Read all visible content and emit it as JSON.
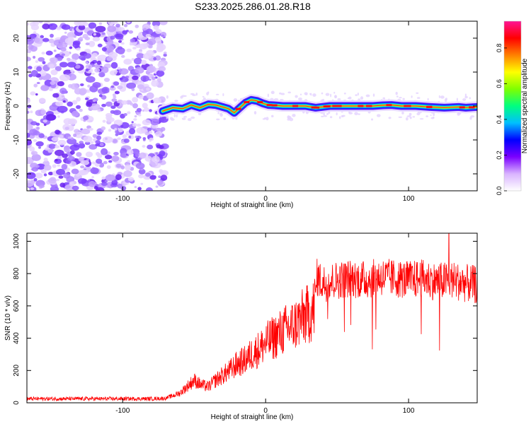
{
  "figure_title": "S233.2025.286.01.28.R18",
  "chart_data": [
    {
      "type": "heatmap",
      "title": "S233.2025.286.01.28.R18",
      "xlabel": "Height of straight line (km)",
      "ylabel": "Frequency (Hz)",
      "xlim": [
        -167,
        148
      ],
      "ylim": [
        -25,
        25
      ],
      "xticks": [
        -100,
        0,
        100
      ],
      "xtick_labels": [
        "-100",
        "0",
        "100"
      ],
      "yticks": [
        -20,
        -10,
        0,
        10,
        20
      ],
      "ytick_labels": [
        "-20",
        "-10",
        "0",
        "10",
        "20"
      ],
      "noise_region_x": [
        -167,
        -70
      ],
      "signal_line": {
        "x": [
          -72,
          -65,
          -58,
          -52,
          -46,
          -40,
          -35,
          -30,
          -26,
          -22,
          -18,
          -14,
          -10,
          -6,
          -2,
          2,
          6,
          12,
          20,
          28,
          35,
          45,
          55,
          65,
          75,
          82,
          88,
          95,
          105,
          115,
          125,
          135,
          140,
          148
        ],
        "freq": [
          -1.5,
          -0.5,
          -0.8,
          0.3,
          -0.5,
          0.5,
          0.3,
          -0.3,
          -0.8,
          -2,
          -0.5,
          1.0,
          1.8,
          1.5,
          0.8,
          0.3,
          0.2,
          0,
          0,
          0,
          -0.5,
          0,
          0,
          0,
          0,
          0.2,
          0.3,
          0,
          0,
          -0.3,
          -0.5,
          -0.3,
          -0.5,
          -0.3
        ]
      },
      "colorbar": {
        "label": "Normalized spectral amplitude",
        "range": [
          0,
          0.95
        ],
        "ticks": [
          0.0,
          0.2,
          0.4,
          0.6,
          0.8
        ],
        "tick_labels": [
          "0.0",
          "0.2",
          "0.4",
          "0.6",
          "0.8"
        ],
        "colors": [
          "#ffffff",
          "#d9b3ff",
          "#7b00ff",
          "#0000ff",
          "#00bfff",
          "#00ff80",
          "#7fff00",
          "#ffff00",
          "#ff8000",
          "#ff0000",
          "#ff1493"
        ]
      }
    },
    {
      "type": "line",
      "xlabel": "Height of straight line (km)",
      "ylabel": "SNR (10 * v/v)",
      "xlim": [
        -167,
        148
      ],
      "ylim": [
        0,
        1050
      ],
      "xticks": [
        -100,
        0,
        100
      ],
      "xtick_labels": [
        "-100",
        "0",
        "100"
      ],
      "yticks": [
        0,
        200,
        400,
        600,
        800,
        1000
      ],
      "ytick_labels": [
        "0",
        "200",
        "400",
        "600",
        "800",
        "1000"
      ],
      "line_color": "#ff0000",
      "series": [
        {
          "name": "SNR",
          "x": [
            -167,
            -140,
            -110,
            -80,
            -70,
            -60,
            -55,
            -50,
            -45,
            -40,
            -35,
            -30,
            -25,
            -20,
            -15,
            -10,
            -5,
            0,
            5,
            10,
            15,
            20,
            25,
            30,
            34,
            36,
            40,
            50,
            60,
            70,
            80,
            90,
            100,
            110,
            120,
            130,
            140,
            148
          ],
          "y": [
            25,
            25,
            25,
            25,
            28,
            60,
            100,
            140,
            110,
            100,
            140,
            170,
            200,
            240,
            260,
            300,
            330,
            370,
            400,
            430,
            460,
            480,
            520,
            550,
            580,
            780,
            740,
            760,
            770,
            760,
            780,
            770,
            760,
            770,
            750,
            760,
            740,
            730
          ]
        }
      ]
    }
  ]
}
